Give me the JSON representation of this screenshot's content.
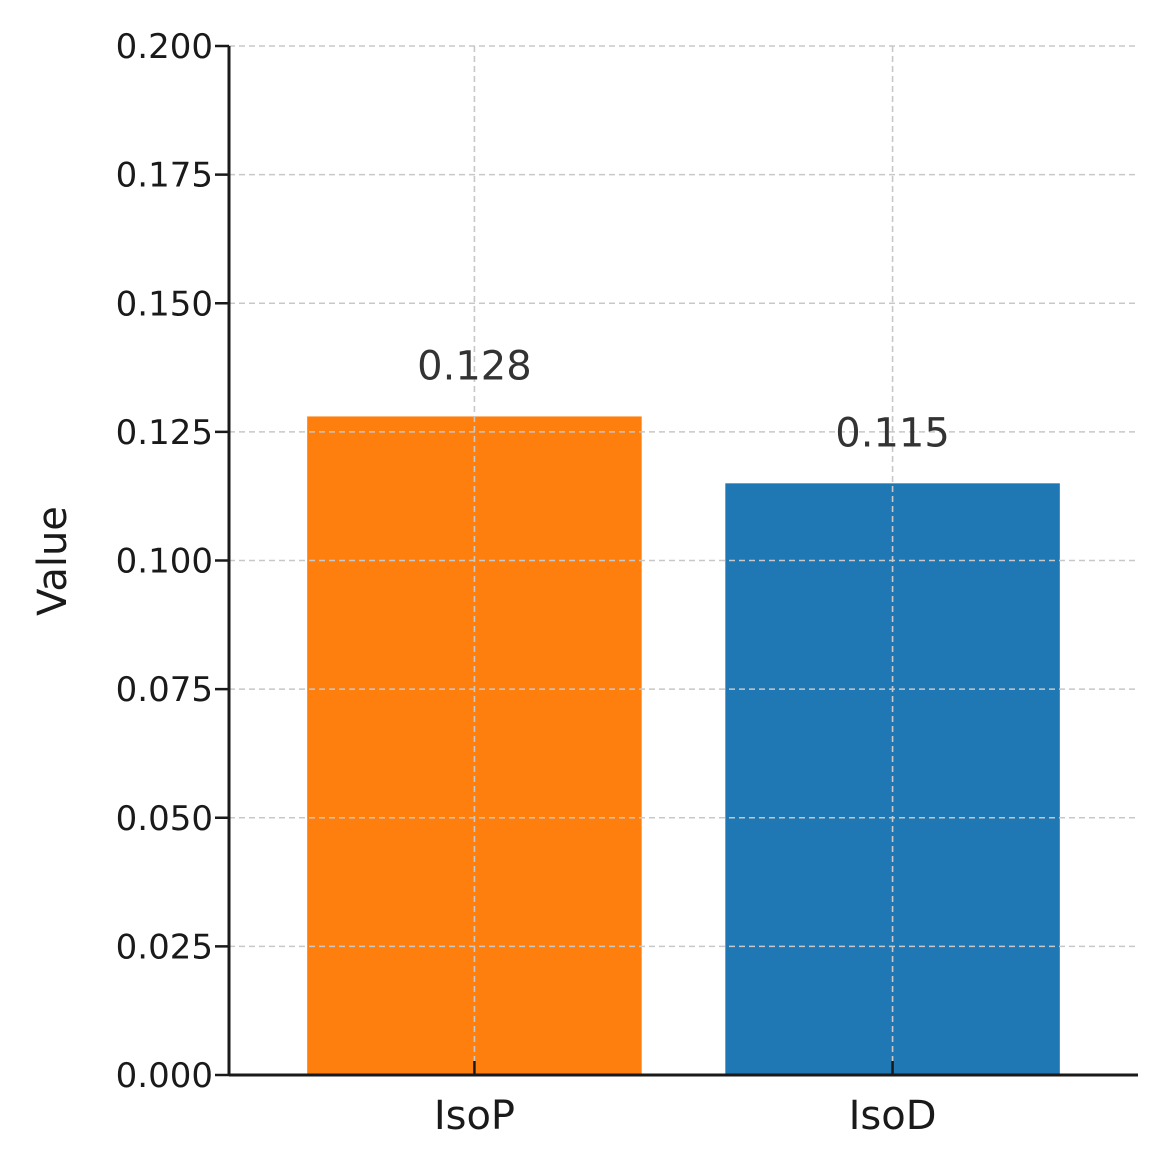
{
  "chart_data": {
    "type": "bar",
    "title": "",
    "xlabel": "",
    "ylabel": "Value",
    "categories": [
      "IsoP",
      "IsoD"
    ],
    "values": [
      0.128,
      0.115
    ],
    "value_labels": [
      "0.128",
      "0.115"
    ],
    "colors": [
      "#ff7f0e",
      "#1f77b4"
    ],
    "ylim": [
      0,
      0.2
    ],
    "yticks": [
      0,
      0.025,
      0.05,
      0.075,
      0.1,
      0.125,
      0.15,
      0.175,
      0.2
    ],
    "ytick_labels": [
      "0.000",
      "0.025",
      "0.050",
      "0.075",
      "0.100",
      "0.125",
      "0.150",
      "0.175",
      "0.200"
    ],
    "grid": true,
    "legend": "none"
  }
}
